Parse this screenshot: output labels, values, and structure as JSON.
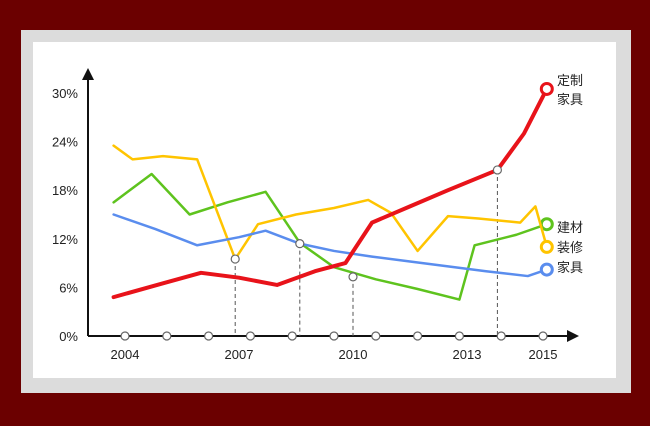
{
  "chart_data": {
    "type": "line",
    "title": "",
    "xlabel": "",
    "ylabel": "",
    "ylim": [
      0,
      30
    ],
    "xlim": [
      2003.7,
      2015.8
    ],
    "y_ticks": [
      "0%",
      "6%",
      "12%",
      "18%",
      "24%",
      "30%"
    ],
    "y_tick_values": [
      0,
      6,
      12,
      18,
      24,
      30
    ],
    "x_ticks": [
      "2004",
      "2007",
      "2010",
      "2013",
      "2015"
    ],
    "x_tick_values": [
      2004,
      2007,
      2010,
      2013,
      2015
    ],
    "x_markers": [
      2004,
      2005.1,
      2006.2,
      2007.3,
      2008.4,
      2009.5,
      2010.6,
      2011.7,
      2012.8,
      2013.9,
      2015
    ],
    "grid": false,
    "legend": "right",
    "series": [
      {
        "name": "定制家具",
        "label_lines": [
          "定制",
          "家具"
        ],
        "color": "#e8131a",
        "emphasis": true,
        "x": [
          2003.7,
          2005,
          2006,
          2007,
          2008,
          2009,
          2009.8,
          2010.5,
          2011.5,
          2012.5,
          2013.8,
          2014.5,
          2015.1
        ],
        "y": [
          4.8,
          6.5,
          7.8,
          7.2,
          6.3,
          8.0,
          9.0,
          14.0,
          16.0,
          18.0,
          20.5,
          25.0,
          30.5
        ]
      },
      {
        "name": "建材",
        "color": "#5ec31e",
        "x": [
          2003.7,
          2004.7,
          2005.7,
          2006.7,
          2007.7,
          2008.6,
          2009.5,
          2010.6,
          2011.7,
          2012.8,
          2013.2,
          2014.3,
          2015.1
        ],
        "y": [
          16.5,
          20.0,
          15.0,
          16.5,
          17.8,
          11.5,
          8.5,
          7.0,
          5.8,
          4.5,
          11.2,
          12.5,
          13.8
        ]
      },
      {
        "name": "装修",
        "color": "#ffc400",
        "x": [
          2003.7,
          2004.2,
          2005,
          2005.9,
          2006.9,
          2007.5,
          2008.5,
          2009.5,
          2010.4,
          2011.0,
          2011.7,
          2012.5,
          2013.3,
          2014.4,
          2014.8,
          2015.1
        ],
        "y": [
          23.5,
          21.8,
          22.2,
          21.8,
          9.5,
          13.8,
          15.0,
          15.8,
          16.8,
          15.2,
          10.5,
          14.8,
          14.5,
          14.0,
          16.0,
          11.0
        ]
      },
      {
        "name": "家具",
        "color": "#5a8dee",
        "x": [
          2003.7,
          2004.8,
          2005.9,
          2007,
          2007.7,
          2008.6,
          2009.5,
          2010.5,
          2011.5,
          2012.5,
          2013.5,
          2014.6,
          2015.1
        ],
        "y": [
          15.0,
          13.2,
          11.2,
          12.2,
          13.0,
          11.4,
          10.5,
          9.8,
          9.2,
          8.6,
          8.0,
          7.4,
          8.2
        ]
      }
    ],
    "annotations": [
      {
        "x": 2006.9,
        "y": 9.5,
        "series": "装修"
      },
      {
        "x": 2008.6,
        "y": 11.4,
        "series": "家具"
      },
      {
        "x": 2010.0,
        "y": 7.3,
        "series": "建材"
      },
      {
        "x": 2013.8,
        "y": 20.5,
        "series": "定制家具"
      }
    ]
  }
}
